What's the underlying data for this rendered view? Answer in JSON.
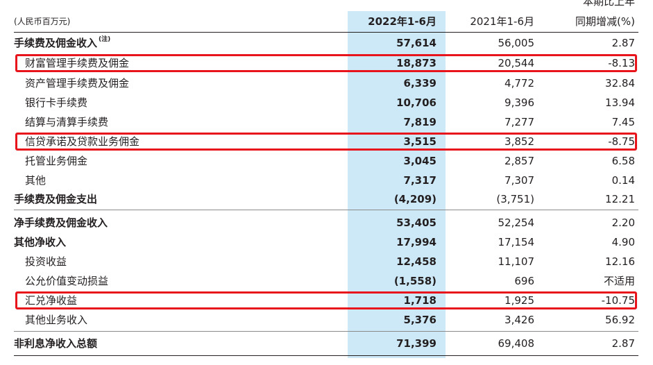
{
  "header": {
    "unit": "(人民币百万元)",
    "col1": "2022年1-6月",
    "col2": "2021年1-6月",
    "col3_line1": "本期比上年",
    "col3_line2": "同期增减(%)"
  },
  "rows": [
    {
      "label": "手续费及佣金收入",
      "note": "(注)",
      "v1": "57,614",
      "v2": "56,005",
      "v3": "2.87"
    },
    {
      "label": "财富管理手续费及佣金",
      "v1": "18,873",
      "v2": "20,544",
      "v3": "-8.13"
    },
    {
      "label": "资产管理手续费及佣金",
      "v1": "6,339",
      "v2": "4,772",
      "v3": "32.84"
    },
    {
      "label": "银行卡手续费",
      "v1": "10,706",
      "v2": "9,396",
      "v3": "13.94"
    },
    {
      "label": "结算与清算手续费",
      "v1": "7,819",
      "v2": "7,277",
      "v3": "7.45"
    },
    {
      "label": "信贷承诺及贷款业务佣金",
      "v1": "3,515",
      "v2": "3,852",
      "v3": "-8.75"
    },
    {
      "label": "托管业务佣金",
      "v1": "3,045",
      "v2": "2,857",
      "v3": "6.58"
    },
    {
      "label": "其他",
      "v1": "7,317",
      "v2": "7,307",
      "v3": "0.14"
    },
    {
      "label": "手续费及佣金支出",
      "v1": "(4,209)",
      "v2": "(3,751)",
      "v3": "12.21"
    },
    {
      "label": "净手续费及佣金收入",
      "v1": "53,405",
      "v2": "52,254",
      "v3": "2.20"
    },
    {
      "label": "其他净收入",
      "v1": "17,994",
      "v2": "17,154",
      "v3": "4.90"
    },
    {
      "label": "投资收益",
      "v1": "12,458",
      "v2": "11,107",
      "v3": "12.16"
    },
    {
      "label": "公允价值变动损益",
      "v1": "(1,558)",
      "v2": "696",
      "v3": "不适用"
    },
    {
      "label": "汇兑净收益",
      "v1": "1,718",
      "v2": "1,925",
      "v3": "-10.75"
    },
    {
      "label": "其他业务收入",
      "v1": "5,376",
      "v2": "3,426",
      "v3": "56.92"
    },
    {
      "label": "非利息净收入总额",
      "v1": "71,399",
      "v2": "69,408",
      "v3": "2.87"
    }
  ],
  "colors": {
    "highlight_column": "#cde9f7",
    "annotation_box": "#e8141b",
    "text": "#231f20"
  }
}
